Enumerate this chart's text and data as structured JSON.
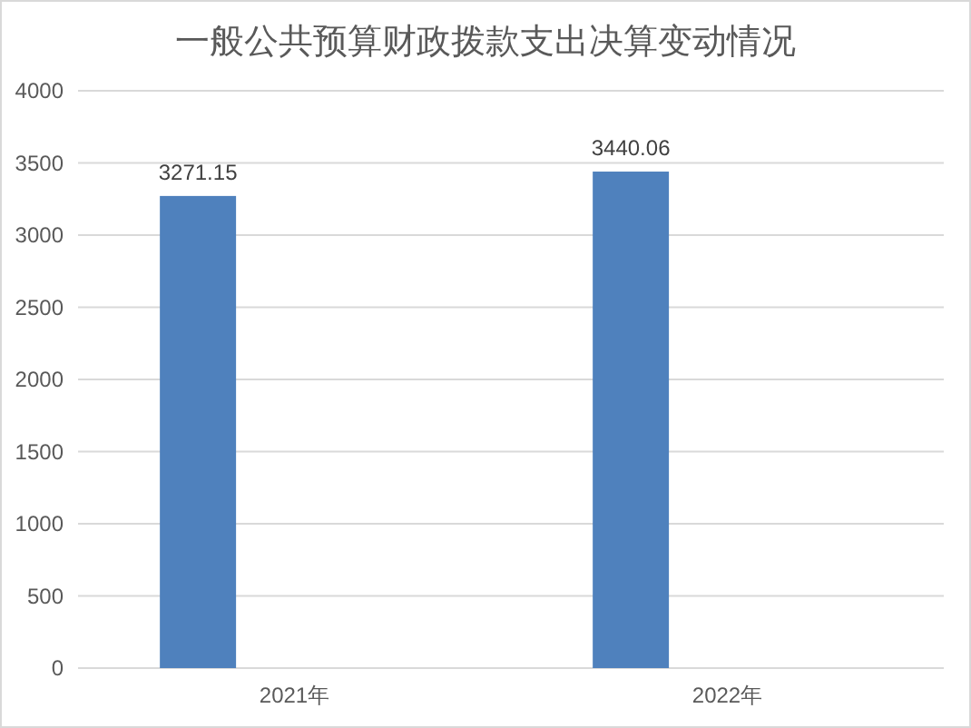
{
  "chart_data": {
    "type": "bar",
    "title": "一般公共预算财政拨款支出决算变动情况",
    "categories": [
      "2021年",
      "2022年"
    ],
    "values": [
      3271.15,
      3440.06
    ],
    "color": "#4f81bd",
    "ylim": [
      0,
      4000
    ],
    "yticks": [
      0,
      500,
      1000,
      1500,
      2000,
      2500,
      3000,
      3500,
      4000
    ],
    "grid": "y",
    "data_labels": true
  }
}
